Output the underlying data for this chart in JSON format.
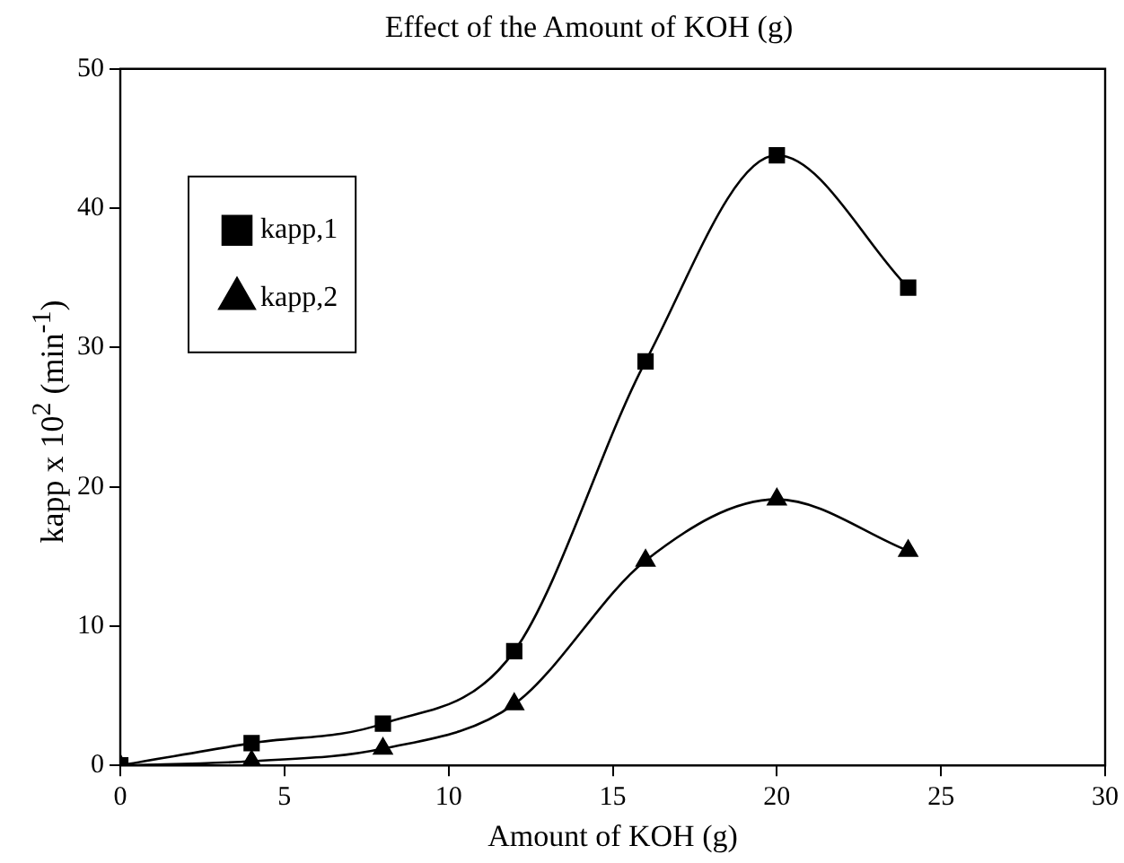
{
  "chart_data": {
    "type": "line",
    "title": "Effect of the Amount of KOH (g)",
    "xlabel": "Amount of KOH (g)",
    "ylabel": "kapp x 10$^{2}$ (min$^{-1}$)",
    "x": [
      0,
      4,
      8,
      12,
      16,
      20,
      24
    ],
    "series": [
      {
        "name": "kapp,1",
        "color": "#000000",
        "marker": "square",
        "values": [
          0,
          1.6,
          3.0,
          8.2,
          29,
          43.8,
          34.3
        ]
      },
      {
        "name": "kapp,2",
        "color": "#000000",
        "marker": "triangle",
        "values": [
          0,
          0.3,
          1.2,
          4.4,
          14.7,
          19.1,
          15.4
        ]
      }
    ],
    "xlim": [
      0,
      30
    ],
    "xticks": [
      0,
      5,
      10,
      15,
      20,
      25,
      30
    ],
    "ylim": [
      0,
      50
    ],
    "yticks": [
      0,
      10,
      20,
      30,
      40,
      50
    ],
    "grid": false,
    "legend": "top left",
    "line_style": "solid"
  }
}
